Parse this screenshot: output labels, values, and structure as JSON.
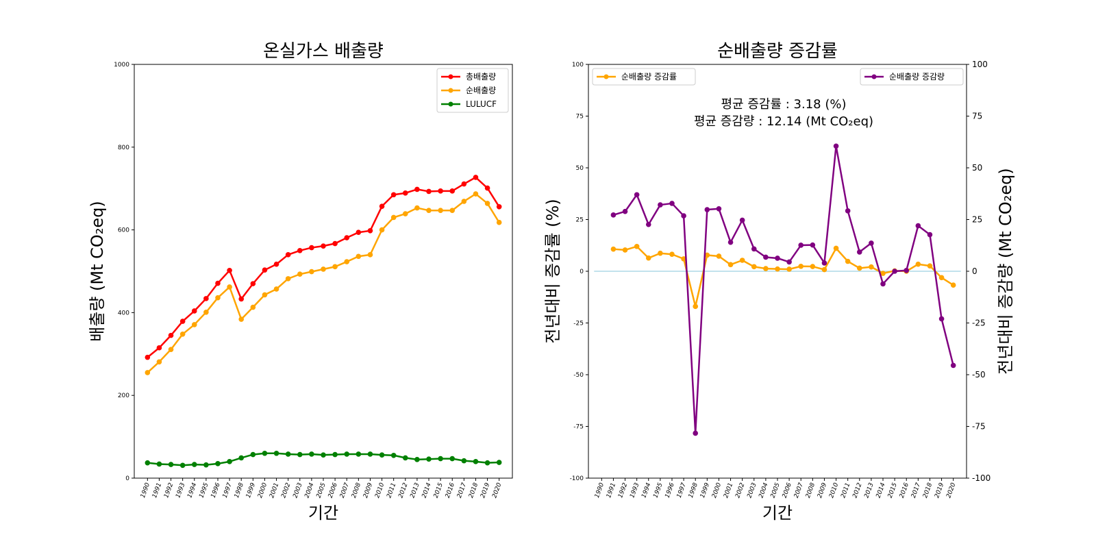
{
  "left_chart": {
    "title": "온실가스 배출량",
    "xlabel": "기간",
    "ylabel": "배출량 (Mt CO₂eq)"
  },
  "right_chart": {
    "title": "순배출량 증감률",
    "xlabel": "기간",
    "ylabel_left": "전년대비 증감률 (%)",
    "ylabel_right": "전년대비 증감량 (Mt CO₂eq)",
    "annotation_line1": "평균 증감률 : 3.18 (%)",
    "annotation_line2": "평균 증감량 : 12.14 (Mt CO₂eq)"
  },
  "colors": {
    "total": "#ff0000",
    "net": "#ffa500",
    "lulucf": "#008000",
    "rate": "#ffa500",
    "change": "#800080",
    "zero_line": "#add8e6"
  },
  "chart_data": [
    {
      "type": "line",
      "title": "온실가스 배출량",
      "xlabel": "기간",
      "ylabel": "배출량 (Mt CO₂eq)",
      "ylim": [
        0,
        1000
      ],
      "yticks": [
        0,
        200,
        400,
        600,
        800,
        1000
      ],
      "legend_position": "top-right",
      "grid": false,
      "categories": [
        "1990",
        "1991",
        "1992",
        "1993",
        "1994",
        "1995",
        "1996",
        "1997",
        "1998",
        "1999",
        "2000",
        "2001",
        "2002",
        "2003",
        "2004",
        "2005",
        "2006",
        "2007",
        "2008",
        "2009",
        "2010",
        "2011",
        "2012",
        "2013",
        "2014",
        "2015",
        "2016",
        "2017",
        "2018",
        "2019",
        "2020"
      ],
      "series": [
        {
          "name": "총배출량",
          "color": "#ff0000",
          "values": [
            292,
            315,
            345,
            379,
            404,
            434,
            471,
            502,
            433,
            470,
            503,
            517,
            540,
            550,
            557,
            561,
            567,
            581,
            594,
            598,
            657,
            685,
            689,
            698,
            693,
            694,
            694,
            711,
            727,
            701,
            656
          ]
        },
        {
          "name": "순배출량",
          "color": "#ffa500",
          "values": [
            255,
            281,
            311,
            348,
            371,
            401,
            436,
            462,
            384,
            413,
            443,
            457,
            482,
            493,
            499,
            505,
            511,
            523,
            536,
            540,
            600,
            630,
            639,
            653,
            647,
            647,
            647,
            669,
            687,
            664,
            618
          ]
        },
        {
          "name": "LULUCF",
          "color": "#008000",
          "values": [
            37,
            34,
            33,
            31,
            33,
            32,
            35,
            40,
            49,
            57,
            60,
            60,
            58,
            57,
            58,
            56,
            57,
            58,
            58,
            58,
            56,
            55,
            49,
            45,
            46,
            47,
            47,
            42,
            40,
            37,
            38
          ]
        }
      ]
    },
    {
      "type": "line",
      "title": "순배출량 증감률",
      "xlabel": "기간",
      "ylabel": "전년대비 증감률 (%)",
      "ylabel_secondary": "전년대비 증감량 (Mt CO₂eq)",
      "ylim": [
        -100,
        100
      ],
      "ylim_secondary": [
        -100,
        100
      ],
      "yticks": [
        -100,
        -75,
        -50,
        -25,
        0,
        25,
        50,
        75,
        100
      ],
      "legend_position": "top-left (rate), top-right (change)",
      "grid": false,
      "categories": [
        "1990",
        "1991",
        "1992",
        "1993",
        "1994",
        "1995",
        "1996",
        "1997",
        "1998",
        "1999",
        "2000",
        "2001",
        "2002",
        "2003",
        "2004",
        "2005",
        "2006",
        "2007",
        "2008",
        "2009",
        "2010",
        "2011",
        "2012",
        "2013",
        "2014",
        "2015",
        "2016",
        "2017",
        "2018",
        "2019",
        "2020"
      ],
      "series": [
        {
          "name": "순배출량 증감률",
          "axis": "left",
          "color": "#ffa500",
          "x": [
            "1991",
            "1992",
            "1993",
            "1994",
            "1995",
            "1996",
            "1997",
            "1998",
            "1999",
            "2000",
            "2001",
            "2002",
            "2003",
            "2004",
            "2005",
            "2006",
            "2007",
            "2008",
            "2009",
            "2010",
            "2011",
            "2012",
            "2013",
            "2014",
            "2015",
            "2016",
            "2017",
            "2018",
            "2019",
            "2020"
          ],
          "values": [
            10.7,
            10.3,
            12.0,
            6.4,
            8.7,
            8.2,
            6.0,
            -17.0,
            7.8,
            7.3,
            3.2,
            5.3,
            2.2,
            1.3,
            1.1,
            1.0,
            2.4,
            2.3,
            0.8,
            11.1,
            4.8,
            1.5,
            2.1,
            -1.0,
            0.2,
            0.0,
            3.4,
            2.6,
            -3.1,
            -6.7
          ]
        },
        {
          "name": "순배출량 증감량",
          "axis": "right",
          "color": "#800080",
          "x": [
            "1991",
            "1992",
            "1993",
            "1994",
            "1995",
            "1996",
            "1997",
            "1998",
            "1999",
            "2000",
            "2001",
            "2002",
            "2003",
            "2004",
            "2005",
            "2006",
            "2007",
            "2008",
            "2009",
            "2010",
            "2011",
            "2012",
            "2013",
            "2014",
            "2015",
            "2016",
            "2017",
            "2018",
            "2019",
            "2020"
          ],
          "values": [
            27.2,
            28.9,
            37.0,
            22.6,
            32.1,
            32.8,
            26.8,
            -78.3,
            29.8,
            30.2,
            14.0,
            24.7,
            10.8,
            6.8,
            6.3,
            4.5,
            12.6,
            12.7,
            4.0,
            60.5,
            29.2,
            9.3,
            13.6,
            -6.1,
            0.0,
            0.4,
            22.0,
            17.7,
            -23.0,
            -45.5
          ]
        }
      ],
      "annotations": [
        "평균 증감률 : 3.18 (%)",
        "평균 증감량 : 12.14 (Mt CO₂eq)"
      ]
    }
  ]
}
